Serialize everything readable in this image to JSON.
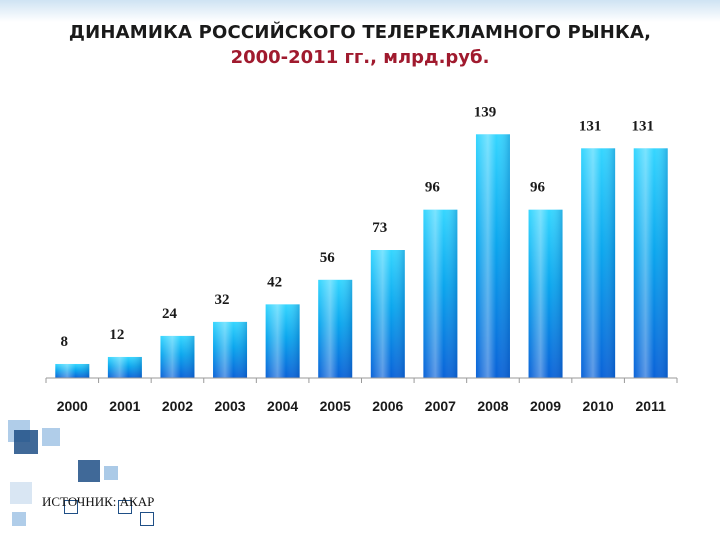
{
  "title": {
    "line1": "ДИНАМИКА РОССИЙСКОГО ТЕЛЕРЕКЛАМНОГО РЫНКА,",
    "line2": "2000-2011 гг., млрд.руб."
  },
  "source": "ИСТОЧНИК: АКАР",
  "colors": {
    "bar_top": "#35d6ff",
    "bar_mid": "#0aa6ee",
    "bar_bottom": "#0a62d8",
    "title_accent": "#a01a2e",
    "deco_dark": "#1f4f86",
    "deco_light": "#8fb8df"
  },
  "chart_data": {
    "type": "bar",
    "categories": [
      "2000",
      "2001",
      "2002",
      "2003",
      "2004",
      "2005",
      "2006",
      "2007",
      "2008",
      "2009",
      "2010",
      "2011"
    ],
    "values": [
      8,
      12,
      24,
      32,
      42,
      56,
      73,
      96,
      139,
      96,
      131,
      131
    ],
    "data_labels": [
      "8",
      "12",
      "24",
      "32",
      "42",
      "56",
      "73",
      "96",
      "139",
      "96",
      "131",
      "131"
    ],
    "ylim": [
      0,
      150
    ],
    "grid": false,
    "legend": "none"
  }
}
